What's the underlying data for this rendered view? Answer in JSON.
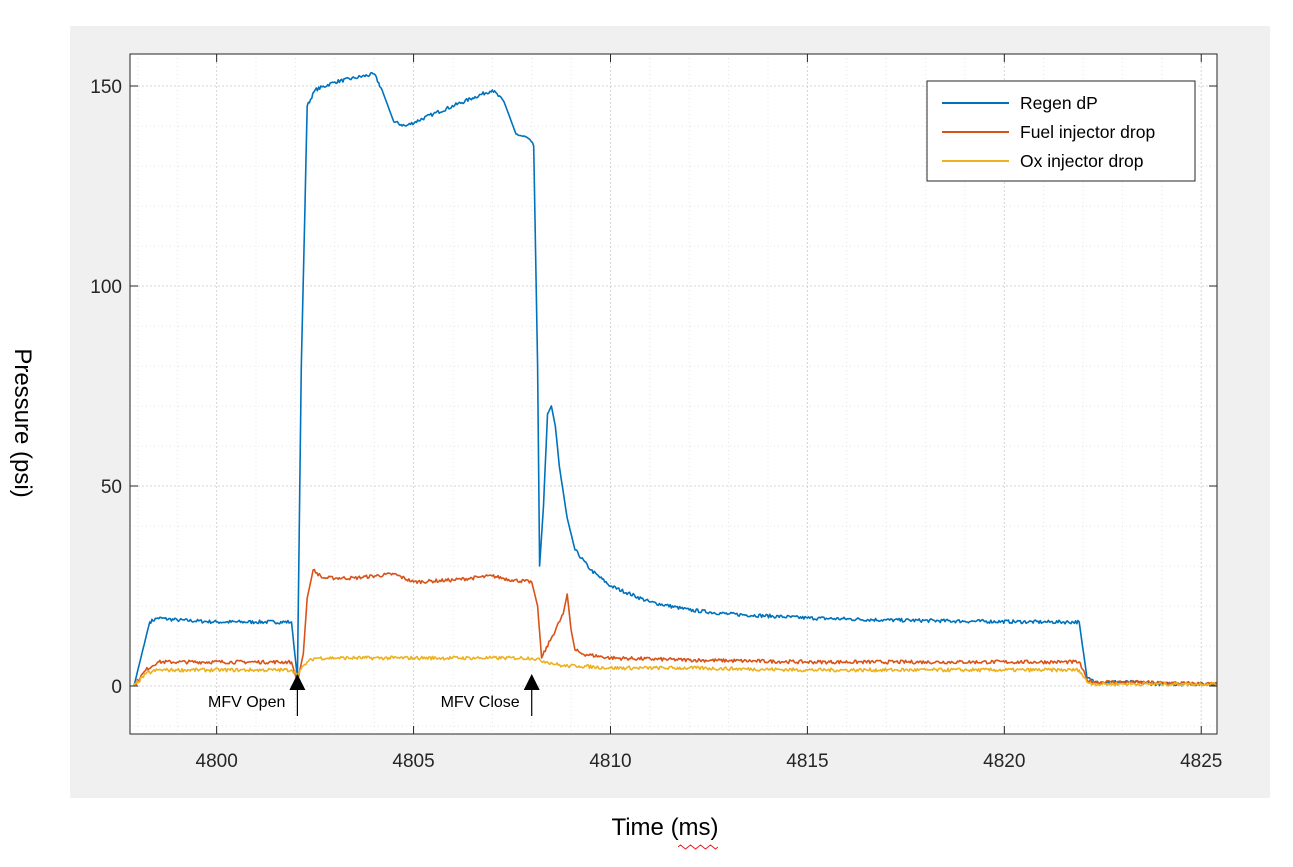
{
  "chart_data": {
    "type": "line",
    "xlabel": "Time (ms)",
    "ylabel": "Pressure (psi)",
    "xlim": [
      4797.8,
      4825.4
    ],
    "ylim": [
      -12,
      158
    ],
    "xticks": [
      4800,
      4805,
      4810,
      4815,
      4820,
      4825
    ],
    "yticks": [
      0,
      50,
      100,
      150
    ],
    "grid": "major and minor",
    "legend_position": "top-right",
    "series": [
      {
        "name": "Regen dP",
        "color": "#0072BD",
        "x": [
          4797.9,
          4798.1,
          4798.3,
          4798.5,
          4799.0,
          4800.0,
          4801.0,
          4801.9,
          4802.05,
          4802.15,
          4802.3,
          4802.5,
          4803.0,
          4803.5,
          4804.0,
          4804.2,
          4804.5,
          4804.8,
          4805.5,
          4806.5,
          4807.0,
          4807.3,
          4807.6,
          4807.9,
          4808.05,
          4808.15,
          4808.2,
          4808.3,
          4808.4,
          4808.5,
          4808.6,
          4808.7,
          4808.9,
          4809.1,
          4809.5,
          4810.0,
          4811.0,
          4812.0,
          4813.0,
          4815.0,
          4817.0,
          4819.0,
          4821.0,
          4821.9,
          4822.1,
          4822.3,
          4823.0,
          4824.0,
          4825.4
        ],
        "y": [
          0,
          8,
          16,
          17,
          16.5,
          16,
          16,
          16,
          2,
          80,
          145,
          149,
          151,
          152,
          153,
          149,
          141,
          140,
          143,
          147,
          149,
          146,
          138,
          137,
          135,
          80,
          30,
          45,
          68,
          70,
          65,
          55,
          42,
          34,
          29,
          25,
          21,
          19,
          18,
          17,
          16.5,
          16.2,
          16,
          16,
          2,
          1,
          1,
          0.5,
          0.5
        ]
      },
      {
        "name": "Fuel injector drop",
        "color": "#D95319",
        "x": [
          4797.9,
          4798.2,
          4798.5,
          4799.0,
          4801.0,
          4801.9,
          4802.05,
          4802.2,
          4802.3,
          4802.45,
          4802.7,
          4803.5,
          4804.5,
          4805.0,
          4806.0,
          4807.0,
          4807.5,
          4808.0,
          4808.15,
          4808.25,
          4808.5,
          4808.8,
          4808.9,
          4809.0,
          4809.1,
          4809.3,
          4810.0,
          4812.0,
          4815.0,
          4818.0,
          4821.9,
          4822.1,
          4822.3,
          4823.0,
          4825.4
        ],
        "y": [
          0,
          4,
          6,
          6,
          6,
          6,
          1,
          8,
          22,
          29,
          27,
          27,
          28,
          26,
          26.5,
          27.5,
          26.5,
          26,
          20,
          7,
          12,
          18,
          23,
          14,
          9,
          8,
          7,
          6.5,
          6,
          6,
          6,
          1.5,
          1,
          1,
          0.5
        ]
      },
      {
        "name": "Ox injector drop",
        "color": "#EDB120",
        "x": [
          4797.9,
          4798.2,
          4798.5,
          4799.0,
          4801.0,
          4801.9,
          4802.05,
          4802.3,
          4802.5,
          4803.0,
          4805.0,
          4807.0,
          4808.0,
          4808.4,
          4808.8,
          4809.2,
          4810.0,
          4812.0,
          4815.0,
          4818.0,
          4821.9,
          4822.1,
          4822.3,
          4823.0,
          4825.4
        ],
        "y": [
          0,
          3,
          4,
          4,
          4,
          4,
          3,
          6,
          7,
          7,
          7,
          7,
          7,
          6,
          5,
          5,
          4.5,
          4.5,
          4,
          4,
          4,
          1,
          0.5,
          0.5,
          0.5
        ]
      }
    ],
    "annotations": [
      {
        "text": "MFV Open",
        "x": 4802.05
      },
      {
        "text": "MFV Close",
        "x": 4808.0
      }
    ]
  }
}
